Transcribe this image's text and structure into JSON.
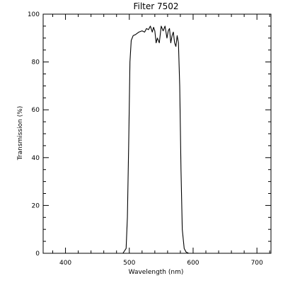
{
  "chart_data": {
    "type": "line",
    "title": "Filter 7502",
    "xlabel": "Wavelength (nm)",
    "ylabel": "Transmission (%)",
    "xlim": [
      365,
      722
    ],
    "ylim": [
      0,
      100
    ],
    "xticks": [
      400,
      500,
      600,
      700
    ],
    "yticks": [
      0,
      20,
      40,
      60,
      80,
      100
    ],
    "xminor_step": 20,
    "yminor_step": 5,
    "grid": false,
    "line_color": "#000000",
    "series": [
      {
        "x": [
          470,
          490,
          495,
          497,
          499,
          501,
          503,
          506,
          510,
          515,
          520,
          524,
          527,
          530,
          533,
          536,
          538,
          540,
          542,
          544,
          547,
          550,
          553,
          556,
          559,
          561,
          563,
          565,
          567,
          569,
          571,
          573,
          575,
          577,
          579,
          581,
          583,
          586,
          589,
          593,
          597,
          602,
          610,
          625
        ],
        "y": [
          0,
          0,
          2,
          15,
          45,
          80,
          89,
          91,
          91.5,
          92.5,
          93,
          92.5,
          94,
          93.5,
          95,
          92.5,
          94.5,
          93,
          88,
          90,
          88,
          95,
          93,
          95,
          90,
          93,
          94,
          88,
          91,
          92.5,
          88,
          86.5,
          91,
          88,
          70,
          35,
          10,
          2,
          0.5,
          0,
          0,
          0,
          0,
          0
        ]
      }
    ]
  }
}
